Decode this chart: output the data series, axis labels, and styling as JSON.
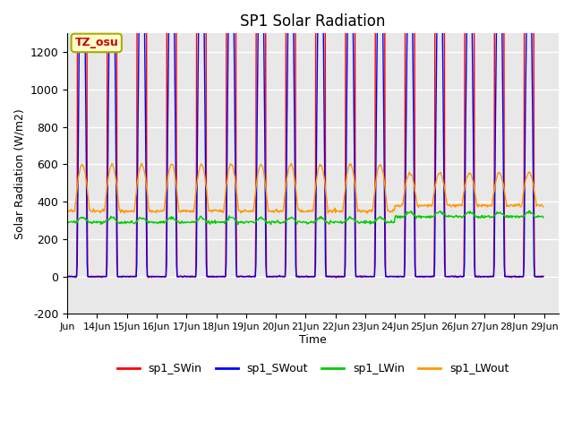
{
  "title": "SP1 Solar Radiation",
  "xlabel": "Time",
  "ylabel": "Solar Radiation (W/m2)",
  "ylim": [
    -200,
    1300
  ],
  "yticks": [
    -200,
    0,
    200,
    400,
    600,
    800,
    1000,
    1200
  ],
  "annotation_text": "TZ_osu",
  "annotation_bg": "#ffffcc",
  "annotation_border": "#aaaa00",
  "annotation_text_color": "#cc0000",
  "colors": {
    "sp1_SWin": "#ff0000",
    "sp1_SWout": "#0000ff",
    "sp1_LWin": "#00cc00",
    "sp1_LWout": "#ff9900"
  },
  "plot_bg": "#e8e8e8",
  "fig_bg": "#ffffff",
  "figsize": [
    6.4,
    4.8
  ],
  "dpi": 100,
  "grid_color": "#ffffff",
  "grid_linewidth": 1.0,
  "line_linewidth": 1.0
}
